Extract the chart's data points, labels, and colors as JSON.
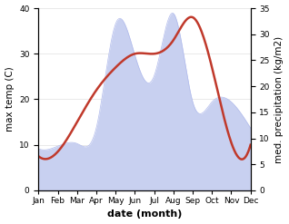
{
  "months": [
    "Jan",
    "Feb",
    "Mar",
    "Apr",
    "May",
    "Jun",
    "Jul",
    "Aug",
    "Sep",
    "Oct",
    "Nov",
    "Dec"
  ],
  "temp": [
    7.5,
    8.5,
    15.0,
    22.0,
    27.0,
    30.0,
    30.0,
    33.0,
    38.0,
    27.0,
    10.5,
    10.0
  ],
  "precip": [
    8.0,
    8.5,
    9.0,
    12.0,
    32.0,
    26.0,
    22.0,
    34.0,
    17.0,
    17.0,
    17.0,
    12.0
  ],
  "temp_color": "#c0392b",
  "precip_fill_color": "#c8d0f0",
  "precip_edge_color": "#b0baec",
  "ylabel_left": "max temp (C)",
  "ylabel_right": "med. precipitation (kg/m2)",
  "xlabel": "date (month)",
  "ylim_left": [
    0,
    40
  ],
  "ylim_right": [
    0,
    35
  ],
  "yticks_left": [
    0,
    10,
    20,
    30,
    40
  ],
  "yticks_right": [
    0,
    5,
    10,
    15,
    20,
    25,
    30,
    35
  ],
  "background_color": "#ffffff",
  "temp_linewidth": 1.8,
  "label_fontsize": 7.5,
  "tick_fontsize": 6.5,
  "xlabel_fontsize": 8,
  "precip_scale_factor": 0.875
}
